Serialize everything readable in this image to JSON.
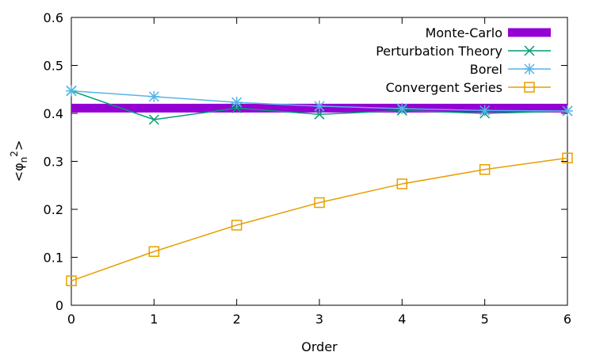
{
  "chart_data": {
    "type": "line",
    "title": "",
    "xlabel": "Order",
    "ylabel": {
      "base": "<φ",
      "sub": "n",
      "sup": "2",
      "close": ">"
    },
    "xlim": [
      0,
      6
    ],
    "ylim": [
      0,
      0.6
    ],
    "x_ticks": [
      "0",
      "1",
      "2",
      "3",
      "4",
      "5",
      "6"
    ],
    "y_ticks": [
      "0",
      "0.1",
      "0.2",
      "0.3",
      "0.4",
      "0.5",
      "0.6"
    ],
    "grid": false,
    "legend_position": "top-right",
    "x": [
      0,
      1,
      2,
      3,
      4,
      5,
      6
    ],
    "series": [
      {
        "name": "Monte-Carlo",
        "style": "band",
        "color": "#9400d3",
        "values": [
          0.411,
          0.411,
          0.411,
          0.411,
          0.411,
          0.411,
          0.411
        ]
      },
      {
        "name": "Perturbation Theory",
        "style": "line-x",
        "color": "#009e73",
        "values": [
          0.447,
          0.387,
          0.411,
          0.398,
          0.406,
          0.4,
          0.405
        ]
      },
      {
        "name": "Borel",
        "style": "line-star",
        "color": "#56b4e9",
        "values": [
          0.447,
          0.435,
          0.423,
          0.415,
          0.41,
          0.406,
          0.405
        ]
      },
      {
        "name": "Convergent Series",
        "style": "line-square",
        "color": "#e69f00",
        "values": [
          0.051,
          0.112,
          0.167,
          0.214,
          0.253,
          0.283,
          0.307
        ]
      }
    ]
  }
}
